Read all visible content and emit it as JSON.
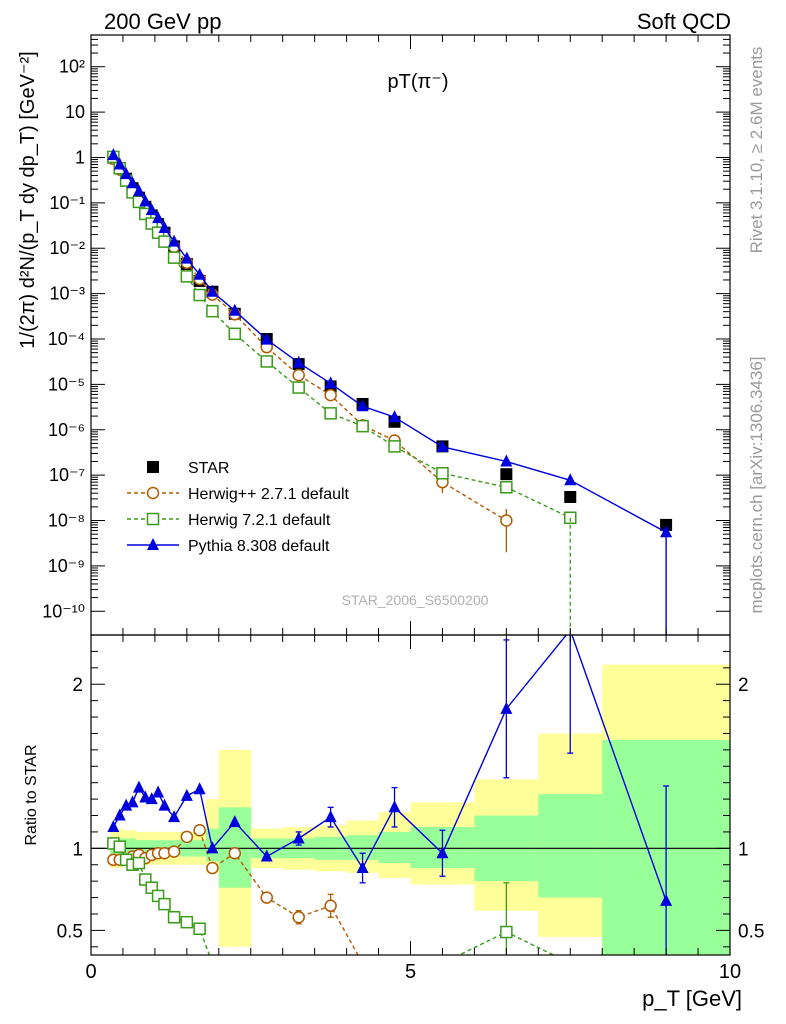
{
  "header": {
    "left": "200 GeV pp",
    "right": "Soft QCD"
  },
  "side_text": {
    "rivet": "Rivet 3.1.10, ≥ 2.6M events",
    "mcplots": "mcplots.cern.ch [arXiv:1306.3436]"
  },
  "chart_data": [
    {
      "type": "scatter",
      "panel": "main",
      "title": "pT(π⁻)",
      "ylabel": "1/(2π) d²N/(p_T dy dp_T) [GeV⁻²]",
      "yscale": "log",
      "xlim": [
        0,
        10
      ],
      "ylim": [
        3e-11,
        500
      ],
      "watermark": "STAR_2006_S6500200",
      "legend_position": "bottom-left",
      "y_tick_labels": [
        "10⁻¹⁰",
        "10⁻⁹",
        "10⁻⁸",
        "10⁻⁷",
        "10⁻⁶",
        "10⁻⁵",
        "10⁻⁴",
        "10⁻³",
        "10⁻²",
        "10⁻¹",
        "1",
        "10",
        "10²"
      ],
      "series": [
        {
          "name": "STAR",
          "color": "#000000",
          "marker": "square-filled",
          "x": [
            0.35,
            0.45,
            0.55,
            0.65,
            0.75,
            0.85,
            0.95,
            1.05,
            1.15,
            1.3,
            1.5,
            1.7,
            1.9,
            2.25,
            2.75,
            3.25,
            3.75,
            4.25,
            4.75,
            5.5,
            6.5,
            7.5,
            9.0
          ],
          "y": [
            1.0,
            0.58,
            0.34,
            0.21,
            0.13,
            0.082,
            0.053,
            0.034,
            0.022,
            0.011,
            0.0045,
            0.0019,
            0.0011,
            0.00036,
            0.0001,
            2.8e-05,
            9e-06,
            3.7e-06,
            1.5e-06,
            4.3e-07,
            1.05e-07,
            3.3e-08,
            8e-09
          ]
        },
        {
          "name": "Herwig++ 2.7.1 default",
          "color": "#b35900",
          "marker": "circle-open",
          "line": "dashed",
          "x": [
            0.35,
            0.45,
            0.55,
            0.65,
            0.75,
            0.85,
            0.95,
            1.05,
            1.15,
            1.3,
            1.5,
            1.7,
            1.9,
            2.25,
            2.75,
            3.25,
            3.75,
            4.25,
            4.75,
            5.5,
            6.5
          ],
          "y": [
            0.93,
            0.54,
            0.32,
            0.2,
            0.125,
            0.077,
            0.05,
            0.032,
            0.021,
            0.0108,
            0.0048,
            0.0021,
            0.00095,
            0.00035,
            6.6e-05,
            1.6e-05,
            5.8e-06,
            1.25e-06,
            5.8e-07,
            7e-08,
            1e-08
          ],
          "yerr": [
            0,
            0,
            0,
            0,
            0,
            0,
            0,
            0,
            0,
            0,
            0,
            0,
            0,
            0,
            0,
            0,
            0,
            0,
            0,
            3e-08,
            8e-09
          ]
        },
        {
          "name": "Herwig 7.2.1 default",
          "color": "#3a9a1a",
          "marker": "square-open",
          "line": "dashed",
          "x": [
            0.35,
            0.45,
            0.55,
            0.65,
            0.75,
            0.85,
            0.95,
            1.05,
            1.15,
            1.3,
            1.5,
            1.7,
            1.9,
            2.25,
            2.75,
            3.25,
            3.75,
            4.25,
            4.75,
            5.5,
            6.5,
            7.5
          ],
          "y": [
            1.03,
            0.58,
            0.31,
            0.17,
            0.105,
            0.057,
            0.035,
            0.022,
            0.014,
            0.0062,
            0.0024,
            0.00093,
            0.00041,
            0.00013,
            3.2e-05,
            8.5e-06,
            2.3e-06,
            1.2e-06,
            4.3e-07,
            1.1e-07,
            5.4e-08,
            1.15e-08
          ]
        },
        {
          "name": "Pythia 8.308 default",
          "color": "#0000dd",
          "marker": "triangle-filled",
          "line": "solid",
          "x": [
            0.35,
            0.45,
            0.55,
            0.65,
            0.75,
            0.85,
            0.95,
            1.05,
            1.15,
            1.3,
            1.5,
            1.7,
            1.9,
            2.25,
            2.75,
            3.25,
            3.75,
            4.25,
            4.75,
            5.5,
            6.5,
            7.5,
            9.0
          ],
          "y": [
            1.13,
            0.7,
            0.43,
            0.27,
            0.18,
            0.108,
            0.069,
            0.046,
            0.028,
            0.014,
            0.0059,
            0.0026,
            0.0011,
            0.00042,
            9.7e-05,
            3e-05,
            1.05e-05,
            3.3e-06,
            1.9e-06,
            4.2e-07,
            2e-07,
            7.7e-08,
            5.5e-09
          ]
        }
      ]
    },
    {
      "type": "scatter",
      "panel": "ratio",
      "ylabel": "Ratio to STAR",
      "xlabel": "p_T [GeV]",
      "xlim": [
        0,
        10
      ],
      "ylim": [
        0.35,
        2.3
      ],
      "x_ticks": [
        0,
        5,
        10
      ],
      "y_ticks": [
        0.5,
        1,
        2
      ],
      "bands": {
        "edges": [
          0.3,
          0.4,
          0.5,
          0.6,
          0.7,
          0.8,
          0.9,
          1.0,
          1.1,
          1.2,
          1.4,
          1.6,
          1.8,
          2.0,
          2.5,
          3.0,
          3.5,
          4.0,
          4.5,
          5.0,
          6.0,
          7.0,
          8.0,
          10.0
        ],
        "yellow": [
          [
            0.88,
            1.12
          ],
          [
            0.88,
            1.12
          ],
          [
            0.89,
            1.11
          ],
          [
            0.89,
            1.11
          ],
          [
            0.9,
            1.1
          ],
          [
            0.9,
            1.1
          ],
          [
            0.9,
            1.1
          ],
          [
            0.9,
            1.1
          ],
          [
            0.9,
            1.1
          ],
          [
            0.9,
            1.1
          ],
          [
            0.9,
            1.1
          ],
          [
            0.9,
            1.1
          ],
          [
            0.85,
            1.3
          ],
          [
            0.4,
            1.6
          ],
          [
            0.88,
            1.12
          ],
          [
            0.87,
            1.13
          ],
          [
            0.86,
            1.14
          ],
          [
            0.85,
            1.17
          ],
          [
            0.82,
            1.22
          ],
          [
            0.78,
            1.28
          ],
          [
            0.62,
            1.42
          ],
          [
            0.46,
            1.7
          ],
          [
            0.35,
            2.12
          ],
          [
            0.35,
            2.12
          ]
        ],
        "green": [
          [
            0.94,
            1.06
          ],
          [
            0.94,
            1.06
          ],
          [
            0.94,
            1.06
          ],
          [
            0.94,
            1.06
          ],
          [
            0.95,
            1.05
          ],
          [
            0.95,
            1.05
          ],
          [
            0.95,
            1.05
          ],
          [
            0.95,
            1.05
          ],
          [
            0.95,
            1.05
          ],
          [
            0.95,
            1.05
          ],
          [
            0.95,
            1.05
          ],
          [
            0.95,
            1.05
          ],
          [
            0.92,
            1.12
          ],
          [
            0.76,
            1.25
          ],
          [
            0.94,
            1.06
          ],
          [
            0.94,
            1.06
          ],
          [
            0.93,
            1.07
          ],
          [
            0.93,
            1.08
          ],
          [
            0.91,
            1.1
          ],
          [
            0.88,
            1.13
          ],
          [
            0.8,
            1.2
          ],
          [
            0.7,
            1.33
          ],
          [
            0.35,
            1.66
          ],
          [
            0.35,
            1.66
          ]
        ]
      },
      "series": [
        {
          "name": "Herwig++ 2.7.1 default",
          "color": "#b35900",
          "marker": "circle-open",
          "line": "dashed",
          "x": [
            0.35,
            0.45,
            0.55,
            0.65,
            0.75,
            0.85,
            0.95,
            1.05,
            1.15,
            1.3,
            1.5,
            1.7,
            1.9,
            2.25,
            2.75,
            3.25,
            3.75,
            4.25
          ],
          "y": [
            0.93,
            0.93,
            0.93,
            0.95,
            0.96,
            0.94,
            0.96,
            0.97,
            0.97,
            0.98,
            1.07,
            1.11,
            0.88,
            0.97,
            0.7,
            0.58,
            0.65,
            0.3
          ],
          "yerr": [
            0,
            0,
            0,
            0,
            0,
            0,
            0,
            0,
            0,
            0,
            0,
            0,
            0,
            0,
            0,
            0.04,
            0.07,
            0
          ]
        },
        {
          "name": "Herwig 7.2.1 default",
          "color": "#3a9a1a",
          "marker": "square-open",
          "line": "dashed",
          "x": [
            0.35,
            0.45,
            0.55,
            0.65,
            0.75,
            0.85,
            0.95,
            1.05,
            1.15,
            1.3,
            1.5,
            1.7,
            1.9,
            5.5,
            6.5,
            7.5
          ],
          "y": [
            1.03,
            1.01,
            0.93,
            0.9,
            0.91,
            0.81,
            0.76,
            0.71,
            0.66,
            0.58,
            0.55,
            0.51,
            0.3,
            0.3,
            0.49,
            0.3
          ],
          "yerr": [
            0,
            0,
            0,
            0,
            0,
            0,
            0,
            0,
            0,
            0,
            0,
            0,
            0,
            0,
            0.3,
            0
          ]
        },
        {
          "name": "Pythia 8.308 default",
          "color": "#0000dd",
          "marker": "triangle-filled",
          "line": "solid",
          "x": [
            0.35,
            0.45,
            0.55,
            0.65,
            0.75,
            0.85,
            0.95,
            1.05,
            1.15,
            1.3,
            1.5,
            1.7,
            1.9,
            2.25,
            2.75,
            3.25,
            3.75,
            4.25,
            4.75,
            5.5,
            6.5,
            7.5,
            9.0
          ],
          "y": [
            1.13,
            1.2,
            1.26,
            1.28,
            1.37,
            1.31,
            1.3,
            1.34,
            1.26,
            1.19,
            1.32,
            1.36,
            1.0,
            1.16,
            0.95,
            1.06,
            1.19,
            0.88,
            1.25,
            0.97,
            1.85,
            2.33,
            0.68
          ],
          "yerr": [
            0,
            0,
            0,
            0,
            0,
            0,
            0,
            0,
            0,
            0,
            0,
            0,
            0,
            0,
            0,
            0.04,
            0.06,
            0.09,
            0.12,
            0.14,
            0.42,
            0.75,
            0.7
          ]
        }
      ]
    }
  ]
}
